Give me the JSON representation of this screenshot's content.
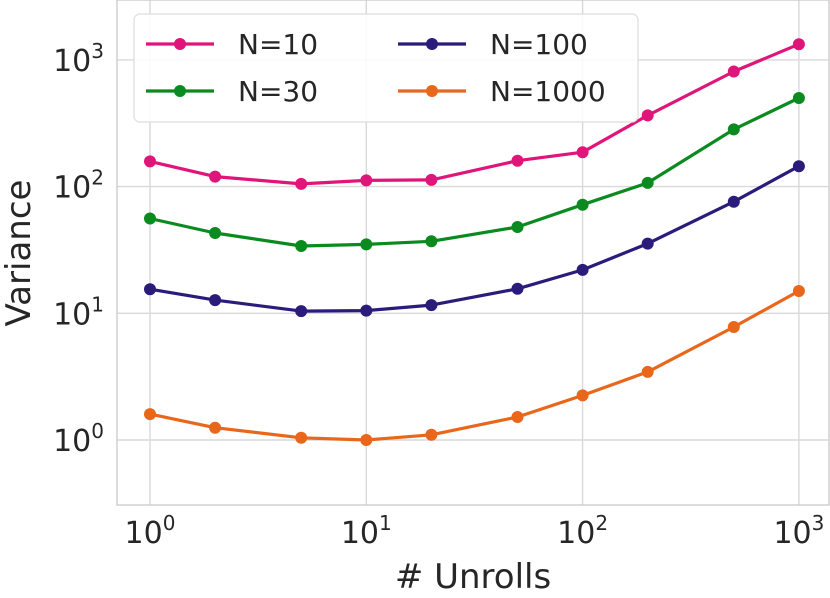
{
  "chart_data": {
    "type": "line",
    "xscale": "log",
    "yscale": "log",
    "xlabel": "# Unrolls",
    "ylabel": "Variance",
    "xlim": [
      0.7,
      1300
    ],
    "ylim": [
      0.3,
      4000
    ],
    "x": [
      1,
      2,
      5,
      10,
      20,
      50,
      100,
      200,
      500,
      1000
    ],
    "xticks": [
      {
        "value": 1,
        "base": "10",
        "exp": "0"
      },
      {
        "value": 10,
        "base": "10",
        "exp": "1"
      },
      {
        "value": 100,
        "base": "10",
        "exp": "2"
      },
      {
        "value": 1000,
        "base": "10",
        "exp": "3"
      }
    ],
    "yticks": [
      {
        "value": 1,
        "base": "10",
        "exp": "0"
      },
      {
        "value": 10,
        "base": "10",
        "exp": "1"
      },
      {
        "value": 100,
        "base": "10",
        "exp": "2"
      },
      {
        "value": 1000,
        "base": "10",
        "exp": "3"
      }
    ],
    "grid": true,
    "legend_position": "top-left",
    "series": [
      {
        "name": "N=10",
        "color": "#e0157a",
        "values": [
          158,
          120,
          105,
          112,
          113,
          160,
          187,
          365,
          810,
          1330
        ]
      },
      {
        "name": "N=30",
        "color": "#0a8a1f",
        "values": [
          56,
          43,
          34,
          35,
          37,
          48,
          72,
          107,
          283,
          500
        ]
      },
      {
        "name": "N=100",
        "color": "#2b1b7a",
        "values": [
          15.5,
          12.7,
          10.4,
          10.5,
          11.6,
          15.6,
          22,
          35.5,
          76,
          145
        ]
      },
      {
        "name": "N=1000",
        "color": "#e8671b",
        "values": [
          1.6,
          1.25,
          1.04,
          1.0,
          1.1,
          1.52,
          2.25,
          3.45,
          7.8,
          15
        ]
      }
    ]
  }
}
